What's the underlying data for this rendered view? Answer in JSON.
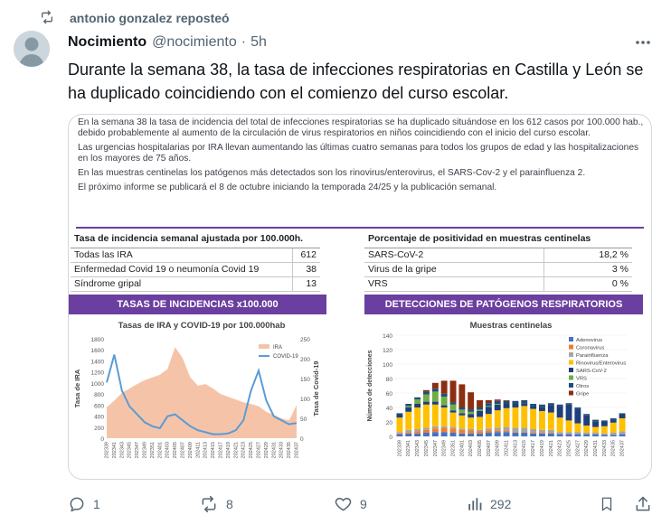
{
  "repost": {
    "text": "antonio gonzalez reposteó"
  },
  "author": {
    "name": "Nocimiento",
    "handle": "@nocimiento",
    "separator": "·",
    "time": "5h"
  },
  "tweet": {
    "text": "Durante la semana 38, la tasa de infecciones respiratorias en Castilla y León se ha duplicado coincidiendo con el comienzo del curso escolar."
  },
  "media": {
    "paragraphs": [
      "En la semana 38 la tasa de incidencia del total de infecciones respiratorias se ha duplicado situándose en los 612 casos por 100.000 hab., debido probablemente al aumento de la circulación de virus respiratorios en niños coincidiendo con el inicio del curso escolar.",
      "Las urgencias hospitalarias por IRA llevan aumentando las últimas cuatro semanas para todos los grupos de edad y las hospitalizaciones en los mayores de 75 años.",
      "En las muestras centinelas los patógenos más detectados son los rinovirus/enterovirus, el SARS-Cov-2 y el parainfluenza 2.",
      "El próximo informe se publicará el 8 de octubre iniciando la temporada 24/25 y la publicación semanal."
    ],
    "table1": {
      "header": "Tasa de incidencia semanal ajustada por 100.000h.",
      "rows": [
        {
          "label": "Todas las IRA",
          "value": "612"
        },
        {
          "label": "Enfermedad Covid 19 o neumonía Covid 19",
          "value": "38"
        },
        {
          "label": "Síndrome gripal",
          "value": "13"
        }
      ]
    },
    "table2": {
      "header": "Porcentaje de positividad en muestras centinelas",
      "rows": [
        {
          "label": "SARS-CoV-2",
          "value": "18,2 %"
        },
        {
          "label": "Virus de la gripe",
          "value": "3 %"
        },
        {
          "label": "VRS",
          "value": "0 %"
        }
      ]
    },
    "banner1": "TASAS DE INCIDENCIAS x100.000",
    "banner2": "DETECCIONES DE PATÓGENOS RESPIRATORIOS"
  },
  "chart_data": [
    {
      "type": "area",
      "title": "Tasas de IRA y COVID-19 por 100.000hab",
      "ylabel": "Tasa de IRA",
      "y2label": "Tasa de Covid-19",
      "ylim": [
        0,
        1800
      ],
      "y2lim": [
        0,
        250
      ],
      "yticks": [
        "0",
        "200",
        "400",
        "600",
        "800",
        "1000",
        "1200",
        "1400",
        "1600",
        "1800"
      ],
      "y2ticks": [
        "0",
        "50",
        "100",
        "150",
        "200",
        "250"
      ],
      "categories": [
        "202339",
        "202341",
        "202343",
        "202345",
        "202347",
        "202349",
        "202351",
        "202401",
        "202403",
        "202405",
        "202407",
        "202409",
        "202411",
        "202413",
        "202415",
        "202417",
        "202419",
        "202421",
        "202423",
        "202425",
        "202427",
        "202429",
        "202431",
        "202433",
        "202435",
        "202437"
      ],
      "series": [
        {
          "name": "IRA",
          "color": "#f5c4a8",
          "values": [
            560,
            680,
            820,
            900,
            980,
            1050,
            1100,
            1150,
            1250,
            1650,
            1450,
            1100,
            950,
            980,
            900,
            800,
            750,
            700,
            650,
            620,
            580,
            480,
            420,
            360,
            320,
            600
          ]
        },
        {
          "name": "COVID-19",
          "color": "#5b9bd5",
          "values": [
            140,
            210,
            120,
            80,
            60,
            40,
            30,
            25,
            55,
            60,
            45,
            30,
            20,
            15,
            10,
            10,
            12,
            20,
            45,
            120,
            170,
            95,
            55,
            45,
            35,
            38
          ]
        }
      ]
    },
    {
      "type": "bar",
      "title": "Muestras centinelas",
      "ylabel": "Número de detecciones",
      "ylim": [
        0,
        140
      ],
      "yticks": [
        "0",
        "20",
        "40",
        "60",
        "80",
        "100",
        "120",
        "140"
      ],
      "categories": [
        "202339",
        "202341",
        "202343",
        "202345",
        "202347",
        "202349",
        "202351",
        "202401",
        "202403",
        "202405",
        "202407",
        "202409",
        "202411",
        "202413",
        "202415",
        "202417",
        "202419",
        "202421",
        "202423",
        "202425",
        "202427",
        "202429",
        "202431",
        "202433",
        "202435",
        "202437"
      ],
      "series": [
        {
          "name": "Adenovirus",
          "color": "#4472c4",
          "values": [
            3,
            4,
            4,
            5,
            6,
            6,
            5,
            4,
            4,
            4,
            5,
            6,
            6,
            5,
            5,
            4,
            4,
            4,
            3,
            3,
            3,
            3,
            3,
            2,
            2,
            3
          ]
        },
        {
          "name": "Coronavirus",
          "color": "#ed7d31",
          "values": [
            1,
            2,
            3,
            4,
            5,
            6,
            6,
            5,
            4,
            3,
            3,
            2,
            2,
            1,
            1,
            1,
            1,
            1,
            0,
            0,
            0,
            0,
            0,
            0,
            0,
            0
          ]
        },
        {
          "name": "Parainfluenza",
          "color": "#a5a5a5",
          "values": [
            2,
            3,
            3,
            3,
            3,
            2,
            2,
            2,
            2,
            2,
            3,
            4,
            5,
            6,
            6,
            5,
            4,
            4,
            3,
            3,
            3,
            2,
            2,
            2,
            3,
            4
          ]
        },
        {
          "name": "Rinovirus/Enterovirus",
          "color": "#ffc000",
          "values": [
            20,
            25,
            30,
            32,
            30,
            26,
            20,
            18,
            16,
            18,
            20,
            24,
            26,
            28,
            30,
            28,
            26,
            24,
            20,
            16,
            12,
            10,
            8,
            10,
            14,
            18
          ]
        },
        {
          "name": "SARS-CoV-2",
          "color": "#1f3f7a",
          "values": [
            4,
            6,
            5,
            4,
            4,
            3,
            3,
            3,
            5,
            8,
            10,
            8,
            6,
            5,
            4,
            4,
            6,
            10,
            16,
            22,
            20,
            14,
            8,
            6,
            4,
            5
          ]
        },
        {
          "name": "VRS",
          "color": "#70ad47",
          "values": [
            0,
            2,
            6,
            10,
            14,
            12,
            8,
            5,
            3,
            2,
            1,
            1,
            0,
            0,
            0,
            0,
            0,
            0,
            0,
            0,
            0,
            0,
            0,
            0,
            0,
            0
          ]
        },
        {
          "name": "Otros",
          "color": "#1f4e79",
          "values": [
            2,
            3,
            3,
            4,
            4,
            4,
            3,
            3,
            3,
            3,
            4,
            4,
            4,
            4,
            4,
            3,
            3,
            3,
            2,
            2,
            2,
            2,
            2,
            2,
            2,
            2
          ]
        },
        {
          "name": "Gripe",
          "color": "#8b2e12",
          "values": [
            0,
            0,
            0,
            2,
            8,
            18,
            30,
            32,
            24,
            10,
            4,
            2,
            1,
            0,
            0,
            0,
            0,
            0,
            0,
            0,
            0,
            0,
            0,
            0,
            0,
            0
          ]
        }
      ]
    }
  ],
  "actions": {
    "reply_count": "1",
    "repost_count": "8",
    "like_count": "9",
    "views_count": "292"
  }
}
